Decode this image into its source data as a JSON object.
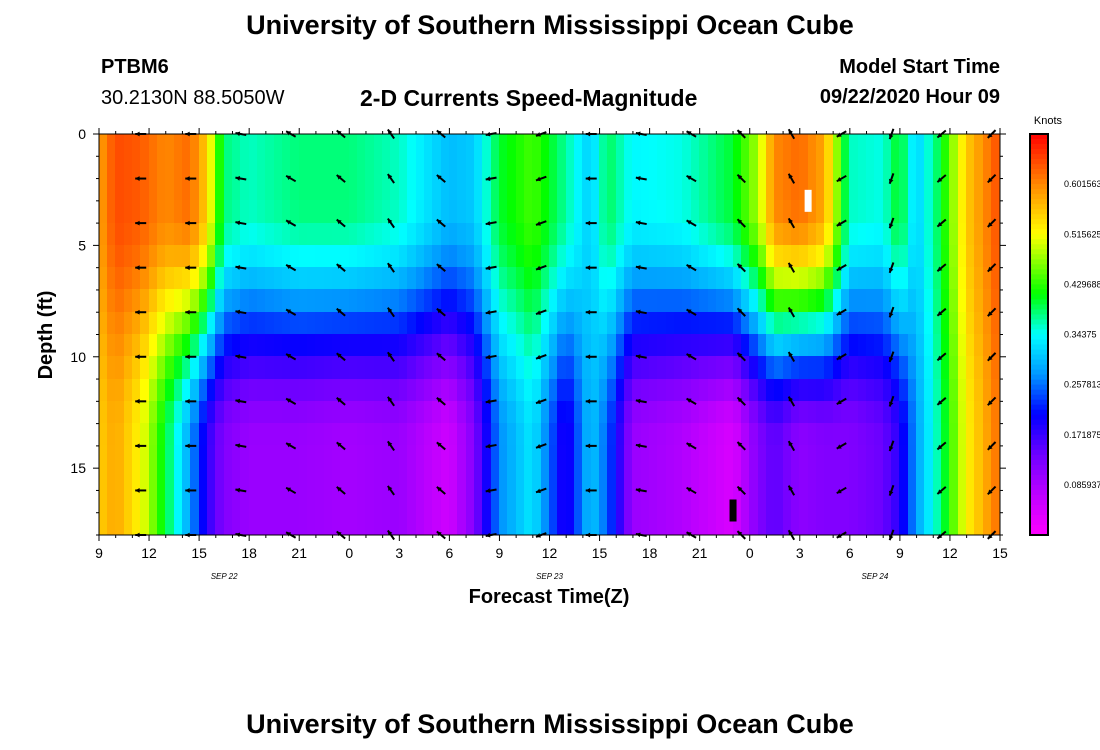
{
  "header": {
    "title": "University of Southern Mississippi Ocean Cube",
    "station_id": "PTBM6",
    "station_coords": "30.2130N 88.5050W",
    "subtitle": "2-D Currents Speed-Magnitude",
    "model_start_label": "Model Start Time",
    "model_start_value": "09/22/2020 Hour 09"
  },
  "footer": {
    "title": "University of Southern Mississippi Ocean Cube"
  },
  "chart_data": {
    "type": "heatmap",
    "title": "2-D Currents Speed-Magnitude",
    "xlabel": "Forecast Time(Z)",
    "ylabel": "Depth (ft)",
    "x_tick_labels": [
      "9",
      "12",
      "15",
      "18",
      "21",
      "0",
      "3",
      "6",
      "9",
      "12",
      "15",
      "18",
      "21",
      "0",
      "3",
      "6",
      "9",
      "12",
      "15"
    ],
    "x_range_hours": [
      0,
      54
    ],
    "date_labels": [
      {
        "label": "SEP 22",
        "hour": 7.5
      },
      {
        "label": "SEP 23",
        "hour": 27
      },
      {
        "label": "SEP 24",
        "hour": 46.5
      }
    ],
    "y_tick_labels": [
      "0",
      "5",
      "10",
      "15"
    ],
    "y_ticks": [
      0,
      5,
      10,
      15
    ],
    "ylim": [
      0,
      18
    ],
    "y_inverted": true,
    "colorbar": {
      "title": "Knots",
      "tick_labels": [
        "0.601563",
        "0.515625",
        "0.429688",
        "0.34375",
        "0.257813",
        "0.171875",
        "0.0859375"
      ],
      "vmin": 0,
      "vmax": 0.6875
    },
    "speed_columns": [
      {
        "hour": 0,
        "surface": 0.58,
        "bottom": 0.55
      },
      {
        "hour": 1,
        "surface": 0.64,
        "bottom": 0.58
      },
      {
        "hour": 2.5,
        "surface": 0.63,
        "bottom": 0.52
      },
      {
        "hour": 4,
        "surface": 0.6,
        "bottom": 0.4
      },
      {
        "hour": 5.5,
        "surface": 0.62,
        "bottom": 0.28
      },
      {
        "hour": 6.5,
        "surface": 0.55,
        "bottom": 0.18
      },
      {
        "hour": 7.5,
        "surface": 0.38,
        "bottom": 0.12
      },
      {
        "hour": 9,
        "surface": 0.36,
        "bottom": 0.1
      },
      {
        "hour": 12,
        "surface": 0.38,
        "bottom": 0.1
      },
      {
        "hour": 15,
        "surface": 0.38,
        "bottom": 0.09
      },
      {
        "hour": 18,
        "surface": 0.36,
        "bottom": 0.1
      },
      {
        "hour": 21,
        "surface": 0.3,
        "bottom": 0.05
      },
      {
        "hour": 22.5,
        "surface": 0.31,
        "bottom": 0.12
      },
      {
        "hour": 24,
        "surface": 0.4,
        "bottom": 0.27
      },
      {
        "hour": 26,
        "surface": 0.44,
        "bottom": 0.33
      },
      {
        "hour": 28,
        "surface": 0.37,
        "bottom": 0.18
      },
      {
        "hour": 29.5,
        "surface": 0.31,
        "bottom": 0.31
      },
      {
        "hour": 30.5,
        "surface": 0.39,
        "bottom": 0.25
      },
      {
        "hour": 32,
        "surface": 0.34,
        "bottom": 0.1
      },
      {
        "hour": 35,
        "surface": 0.35,
        "bottom": 0.08
      },
      {
        "hour": 38,
        "surface": 0.4,
        "bottom": 0.04
      },
      {
        "hour": 39.5,
        "surface": 0.48,
        "bottom": 0.12
      },
      {
        "hour": 40.5,
        "surface": 0.6,
        "bottom": 0.15
      },
      {
        "hour": 42,
        "surface": 0.62,
        "bottom": 0.11
      },
      {
        "hour": 43.5,
        "surface": 0.58,
        "bottom": 0.12
      },
      {
        "hour": 45,
        "surface": 0.36,
        "bottom": 0.12
      },
      {
        "hour": 47,
        "surface": 0.35,
        "bottom": 0.14
      },
      {
        "hour": 48,
        "surface": 0.41,
        "bottom": 0.18
      },
      {
        "hour": 49,
        "surface": 0.31,
        "bottom": 0.28
      },
      {
        "hour": 50.5,
        "surface": 0.4,
        "bottom": 0.38
      },
      {
        "hour": 52,
        "surface": 0.55,
        "bottom": 0.52
      },
      {
        "hour": 54,
        "surface": 0.64,
        "bottom": 0.62
      }
    ],
    "vector_rows_depth_ft": [
      0,
      2,
      4,
      6,
      8,
      10,
      12,
      14,
      16,
      18
    ],
    "vector_columns": [
      {
        "hour": 2.5,
        "direction_deg": 180
      },
      {
        "hour": 5.5,
        "direction_deg": 180
      },
      {
        "hour": 8.5,
        "direction_deg": 170
      },
      {
        "hour": 11.5,
        "direction_deg": 150
      },
      {
        "hour": 14.5,
        "direction_deg": 140
      },
      {
        "hour": 17.5,
        "direction_deg": 125
      },
      {
        "hour": 20.5,
        "direction_deg": 140
      },
      {
        "hour": 23.5,
        "direction_deg": 190
      },
      {
        "hour": 26.5,
        "direction_deg": 200
      },
      {
        "hour": 29.5,
        "direction_deg": 180
      },
      {
        "hour": 32.5,
        "direction_deg": 170
      },
      {
        "hour": 35.5,
        "direction_deg": 150
      },
      {
        "hour": 38.5,
        "direction_deg": 135
      },
      {
        "hour": 41.5,
        "direction_deg": 120
      },
      {
        "hour": 44.5,
        "direction_deg": 210
      },
      {
        "hour": 47.5,
        "direction_deg": 250
      },
      {
        "hour": 50.5,
        "direction_deg": 220
      },
      {
        "hour": 53.5,
        "direction_deg": 225
      }
    ],
    "markers": [
      {
        "hour": 42.5,
        "depth": 3,
        "color": "#ffffff"
      },
      {
        "hour": 38,
        "depth": 16.9,
        "color": "#000000"
      }
    ]
  }
}
